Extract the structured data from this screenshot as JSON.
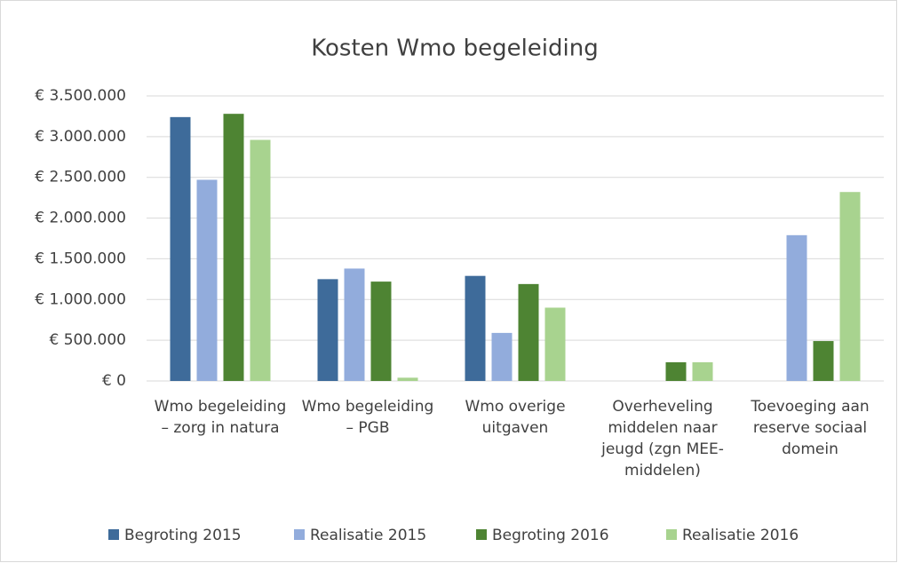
{
  "chart_data": {
    "type": "bar",
    "title": "Kosten Wmo begeleiding",
    "categories": [
      "Wmo begeleiding – zorg in natura",
      "Wmo begeleiding – PGB",
      "Wmo overige uitgaven",
      "Overheveling middelen naar jeugd (zgn MEE-middelen)",
      "Toevoeging aan reserve sociaal domein"
    ],
    "series": [
      {
        "name": "Begroting 2015",
        "color": "#3e6b9a",
        "values": [
          3240000,
          1250000,
          1290000,
          null,
          null
        ]
      },
      {
        "name": "Realisatie 2015",
        "color": "#92acdc",
        "values": [
          2470000,
          1380000,
          590000,
          null,
          1790000
        ]
      },
      {
        "name": "Begroting 2016",
        "color": "#4e8433",
        "values": [
          3280000,
          1220000,
          1190000,
          230000,
          490000
        ]
      },
      {
        "name": "Realisatie 2016",
        "color": "#a8d38f",
        "values": [
          2960000,
          40000,
          900000,
          230000,
          2320000
        ]
      }
    ],
    "ylim": [
      0,
      3500000
    ],
    "yticks": [
      {
        "value": 0,
        "label": "€ 0"
      },
      {
        "value": 500000,
        "label": "€ 500.000"
      },
      {
        "value": 1000000,
        "label": "€ 1.000.000"
      },
      {
        "value": 1500000,
        "label": "€ 1.500.000"
      },
      {
        "value": 2000000,
        "label": "€ 2.000.000"
      },
      {
        "value": 2500000,
        "label": "€ 2.500.000"
      },
      {
        "value": 3000000,
        "label": "€ 3.000.000"
      },
      {
        "value": 3500000,
        "label": "€ 3.500.000"
      }
    ],
    "grid": true,
    "legend": "bottom"
  }
}
